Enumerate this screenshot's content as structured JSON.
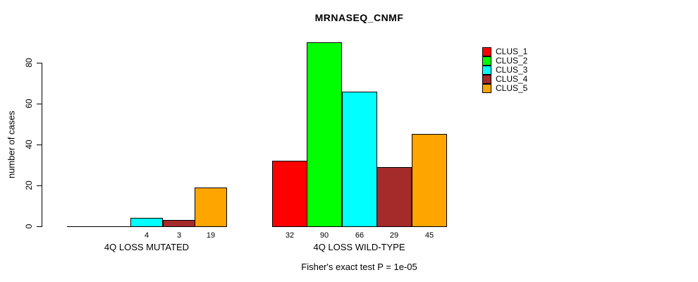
{
  "chart_data": {
    "type": "bar",
    "title": "MRNASEQ_CNMF",
    "ylabel": "number of cases",
    "xlabel": "",
    "yticks": [
      0,
      20,
      40,
      60,
      80
    ],
    "ylim": [
      0,
      93
    ],
    "grid": false,
    "legend_position": "right-inside",
    "categories": [
      "4Q LOSS MUTATED",
      "4Q LOSS WILD-TYPE"
    ],
    "series": [
      {
        "name": "CLUS_1",
        "color": "#FF0000",
        "values": [
          0,
          32
        ]
      },
      {
        "name": "CLUS_2",
        "color": "#00FF00",
        "values": [
          0,
          90
        ]
      },
      {
        "name": "CLUS_3",
        "color": "#00FFFF",
        "values": [
          4,
          66
        ]
      },
      {
        "name": "CLUS_4",
        "color": "#A52A2A",
        "values": [
          3,
          29
        ]
      },
      {
        "name": "CLUS_5",
        "color": "#FFA500",
        "values": [
          19,
          45
        ]
      }
    ],
    "bar_value_labels": {
      "4Q LOSS MUTATED": [
        "",
        "",
        "4",
        "3",
        "19"
      ],
      "4Q LOSS WILD-TYPE": [
        "32",
        "90",
        "66",
        "29",
        "45"
      ]
    },
    "footnote": "Fisher's exact test P = 1e-05"
  }
}
